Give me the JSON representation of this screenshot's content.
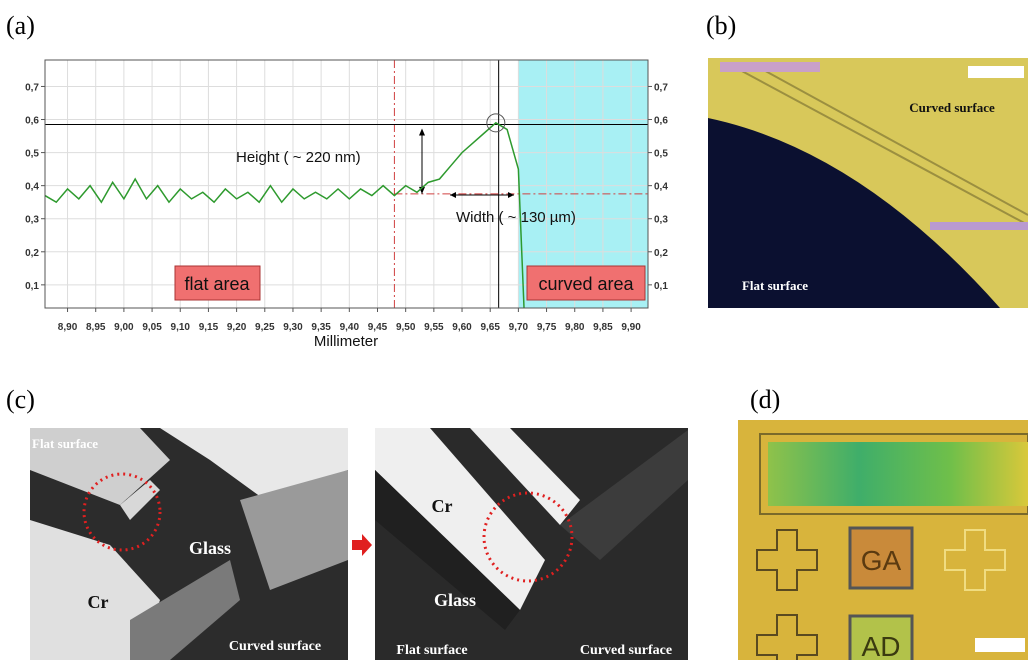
{
  "chart_data": {
    "type": "line",
    "xlabel": "Millimeter",
    "x": [
      8.86,
      8.88,
      8.9,
      8.92,
      8.94,
      8.96,
      8.98,
      9.0,
      9.02,
      9.04,
      9.06,
      9.08,
      9.1,
      9.12,
      9.14,
      9.16,
      9.18,
      9.2,
      9.22,
      9.24,
      9.26,
      9.28,
      9.3,
      9.32,
      9.34,
      9.36,
      9.38,
      9.4,
      9.42,
      9.44,
      9.46,
      9.48,
      9.5,
      9.52,
      9.54,
      9.56,
      9.58,
      9.6,
      9.62,
      9.64,
      9.66,
      9.68,
      9.7,
      9.71
    ],
    "values": [
      0.37,
      0.35,
      0.39,
      0.36,
      0.4,
      0.35,
      0.41,
      0.36,
      0.42,
      0.36,
      0.4,
      0.35,
      0.39,
      0.36,
      0.38,
      0.35,
      0.39,
      0.36,
      0.38,
      0.35,
      0.4,
      0.35,
      0.39,
      0.36,
      0.38,
      0.36,
      0.39,
      0.36,
      0.39,
      0.37,
      0.4,
      0.37,
      0.4,
      0.38,
      0.41,
      0.42,
      0.46,
      0.5,
      0.53,
      0.56,
      0.59,
      0.57,
      0.45,
      0.03
    ],
    "color": "#2e9a2e",
    "xlim": [
      8.86,
      9.93
    ],
    "ylim": [
      0.03,
      0.78
    ],
    "y2lim": [
      0.03,
      0.78
    ],
    "xticks": [
      {
        "value": 8.9,
        "label": "8,90"
      },
      {
        "value": 8.95,
        "label": "8,95"
      },
      {
        "value": 9.0,
        "label": "9,00"
      },
      {
        "value": 9.05,
        "label": "9,05"
      },
      {
        "value": 9.1,
        "label": "9,10"
      },
      {
        "value": 9.15,
        "label": "9,15"
      },
      {
        "value": 9.2,
        "label": "9,20"
      },
      {
        "value": 9.25,
        "label": "9,25"
      },
      {
        "value": 9.3,
        "label": "9,30"
      },
      {
        "value": 9.35,
        "label": "9,35"
      },
      {
        "value": 9.4,
        "label": "9,40"
      },
      {
        "value": 9.45,
        "label": "9,45"
      },
      {
        "value": 9.5,
        "label": "9,50"
      },
      {
        "value": 9.55,
        "label": "9,55"
      },
      {
        "value": 9.6,
        "label": "9,60"
      },
      {
        "value": 9.65,
        "label": "9,65"
      },
      {
        "value": 9.7,
        "label": "9,70"
      },
      {
        "value": 9.75,
        "label": "9,75"
      },
      {
        "value": 9.8,
        "label": "9,80"
      },
      {
        "value": 9.85,
        "label": "9,85"
      },
      {
        "value": 9.9,
        "label": "9,90"
      }
    ],
    "yticks": [
      {
        "value": 0.1,
        "label": "0,1"
      },
      {
        "value": 0.2,
        "label": "0,2"
      },
      {
        "value": 0.3,
        "label": "0,3"
      },
      {
        "value": 0.4,
        "label": "0,4"
      },
      {
        "value": 0.5,
        "label": "0,5"
      },
      {
        "value": 0.6,
        "label": "0,6"
      },
      {
        "value": 0.7,
        "label": "0,7"
      }
    ],
    "y2ticks": [
      {
        "value": 0.1,
        "label": "0,1"
      },
      {
        "value": 0.2,
        "label": "0,2"
      },
      {
        "value": 0.3,
        "label": "0,3"
      },
      {
        "value": 0.4,
        "label": "0,4"
      },
      {
        "value": 0.5,
        "label": "0,5"
      },
      {
        "value": 0.6,
        "label": "0,6"
      },
      {
        "value": 0.7,
        "label": "0,7"
      }
    ],
    "grid": true,
    "shade_from": 9.7,
    "vlines": [
      9.48,
      9.665
    ],
    "hlines": [
      0.585,
      0.375
    ],
    "annotations": [
      "Height ( ~ 220 nm)",
      "Width ( ~ 130 µm)",
      "flat area",
      "curved area"
    ]
  },
  "figure": {
    "panel_labels": [
      "(a)",
      "(b)",
      "(c)",
      "(d)"
    ],
    "b_texts": [
      "Curved surface",
      "Flat surface"
    ],
    "c_left": [
      "Flat surface",
      "Glass",
      "Cr",
      "Curved surface"
    ],
    "c_right": [
      "Cr",
      "Glass",
      "Flat surface",
      "Curved surface"
    ],
    "d_texts": [
      "GA",
      "AD"
    ]
  }
}
